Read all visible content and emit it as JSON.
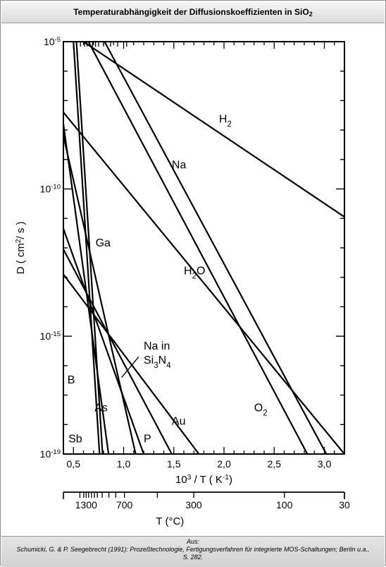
{
  "header": {
    "title_main": "Temperaturabhängigkeit der Diffusionskoeffizienten in SiO",
    "title_sub": "2"
  },
  "source": {
    "label": "Aus:",
    "citation": "Schumicki, G. & P. Seegebrecht (1991): Prozeßtechnologie, Fertigungsverfahren für integrierte MOS-Schaltungen; Berlin u.a.,",
    "page": "S. 282."
  },
  "chart_data": {
    "type": "line",
    "title": "Temperaturabhängigkeit der Diffusionskoeffizienten in SiO2",
    "y_scale": "log",
    "ylim_exp": [
      -19,
      -5
    ],
    "xlim": [
      0.4,
      3.2
    ],
    "ylabel": {
      "pre": "D  ( cm",
      "sup": "2",
      "post": "/ s )"
    },
    "xlabel": {
      "pre": "10",
      "sup": "3",
      "mid": " / T   ( K",
      "sup2": "-1",
      "post": ")"
    },
    "top_xlabel": "T (°C)",
    "y_ticks": [
      {
        "exp": -5,
        "base": "10",
        "sup": "-5"
      },
      {
        "exp": -10,
        "base": "10",
        "sup": "-10"
      },
      {
        "exp": -15,
        "base": "10",
        "sup": "-15"
      },
      {
        "exp": -19,
        "base": "10",
        "sup": "-19"
      }
    ],
    "x_ticks": [
      {
        "value": 0.5,
        "label": "0,5"
      },
      {
        "value": 1.0,
        "label": "1,0"
      },
      {
        "value": 1.5,
        "label": "1,5"
      },
      {
        "value": 2.0,
        "label": "2,0"
      },
      {
        "value": 2.5,
        "label": "2,5"
      },
      {
        "value": 3.0,
        "label": "3,0"
      }
    ],
    "temperature_axis": {
      "labels": [
        {
          "inv": 0.635,
          "label": "1300"
        },
        {
          "inv": 1.03,
          "label": "700"
        },
        {
          "inv": 1.745,
          "label": "300"
        },
        {
          "inv": 2.68,
          "label": "100"
        },
        {
          "inv": 3.3,
          "label": "30"
        }
      ],
      "minor_ticks": [
        0.57,
        0.61,
        0.635,
        0.66,
        0.69,
        0.72,
        0.75,
        0.8,
        0.87,
        0.94,
        1.03,
        1.37,
        1.745,
        2.68,
        3.3
      ]
    },
    "series": [
      {
        "name": "H",
        "sub": "2",
        "points": [
          [
            0.6,
            -5.0
          ],
          [
            3.2,
            -10.95
          ]
        ]
      },
      {
        "name": "Na",
        "points": [
          [
            0.81,
            -5.0
          ],
          [
            3.02,
            -19.0
          ]
        ]
      },
      {
        "name": "O",
        "sub": "2",
        "points": [
          [
            0.65,
            -5.0
          ],
          [
            2.83,
            -19.0
          ]
        ]
      },
      {
        "name": "H",
        "sub": "2",
        "post": "O",
        "points": [
          [
            0.4,
            -7.4
          ],
          [
            3.2,
            -19.0
          ]
        ]
      },
      {
        "name": "Ga",
        "points": [
          [
            0.53,
            -5.0
          ],
          [
            0.79,
            -19.0
          ]
        ]
      },
      {
        "name": "Sb",
        "points": [
          [
            0.5,
            -5.0
          ],
          [
            0.76,
            -19.0
          ]
        ]
      },
      {
        "name": "B",
        "points": [
          [
            0.4,
            -7.8
          ],
          [
            0.85,
            -19.0
          ]
        ]
      },
      {
        "name": "As",
        "points": [
          [
            0.4,
            -8.2
          ],
          [
            1.12,
            -19.0
          ]
        ]
      },
      {
        "name": "P",
        "points": [
          [
            0.4,
            -11.35
          ],
          [
            1.2,
            -19.0
          ]
        ]
      },
      {
        "name": "Au",
        "points": [
          [
            0.4,
            -12.05
          ],
          [
            1.48,
            -19.0
          ]
        ]
      },
      {
        "name": "Na in Si",
        "sub": "3",
        "post": "N",
        "sub2": "4",
        "points": [
          [
            0.4,
            -12.9
          ],
          [
            1.75,
            -19.0
          ]
        ]
      }
    ],
    "annotations": [
      {
        "series": "H",
        "x": 1.95,
        "y": -7.75
      },
      {
        "series": "Na",
        "x": 1.48,
        "y": -9.3
      },
      {
        "series": "Ga",
        "x": 0.72,
        "y": -11.95
      },
      {
        "series": "H",
        "x": 1.6,
        "y": -12.9
      },
      {
        "series": "Na in Si",
        "x": 1.2,
        "y": -15.45
      },
      {
        "series": "B",
        "x": 0.44,
        "y": -16.6
      },
      {
        "series": "As",
        "x": 0.71,
        "y": -17.55
      },
      {
        "series": "Sb",
        "x": 0.45,
        "y": -18.6
      },
      {
        "series": "Au",
        "x": 1.48,
        "y": -18.0
      },
      {
        "series": "P",
        "x": 1.2,
        "y": -18.6
      },
      {
        "series": "O",
        "x": 2.3,
        "y": -17.55
      }
    ]
  }
}
